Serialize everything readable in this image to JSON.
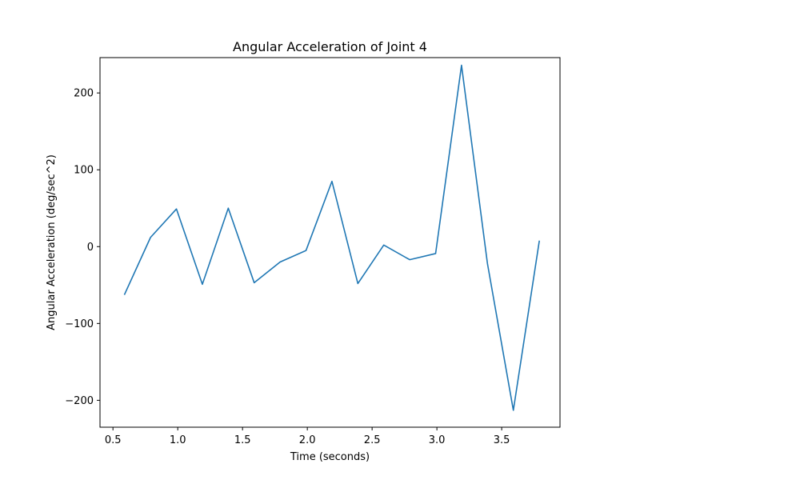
{
  "chart_data": {
    "type": "line",
    "title": "Angular Acceleration of Joint 4",
    "xlabel": "Time (seconds)",
    "ylabel": "Angular Acceleration (deg/sec^2)",
    "xlim": [
      0.4,
      3.95
    ],
    "ylim": [
      -235,
      246
    ],
    "xticks": [
      0.5,
      1.0,
      1.5,
      2.0,
      2.5,
      3.0,
      3.5
    ],
    "xtick_labels": [
      "0.5",
      "1.0",
      "1.5",
      "2.0",
      "2.5",
      "3.0",
      "3.5"
    ],
    "yticks": [
      -200,
      -100,
      0,
      100,
      200
    ],
    "ytick_labels": [
      "−200",
      "−100",
      "0",
      "100",
      "200"
    ],
    "grid": false,
    "series": [
      {
        "color": "#1f77b4",
        "x": [
          0.59,
          0.79,
          0.99,
          1.19,
          1.39,
          1.59,
          1.79,
          1.99,
          2.19,
          2.39,
          2.59,
          2.79,
          2.99,
          3.19,
          3.39,
          3.59,
          3.79
        ],
        "y": [
          -62,
          12,
          49,
          -49,
          50,
          -47,
          -20,
          -5,
          85,
          -48,
          2,
          -17,
          -9,
          236,
          -22,
          -213,
          7
        ]
      }
    ]
  }
}
